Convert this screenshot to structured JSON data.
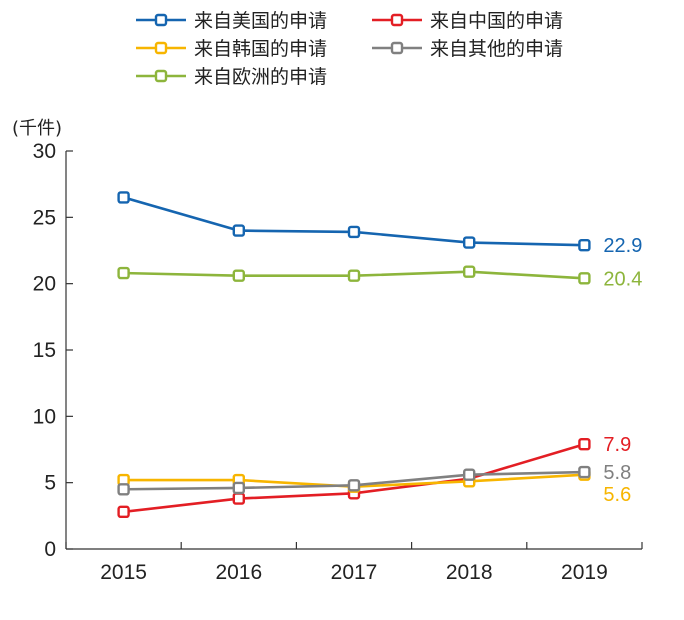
{
  "chart_data": {
    "type": "line",
    "title": "",
    "xlabel": "",
    "ylabel": "",
    "unit_label": "(千件)",
    "categories": [
      "2015",
      "2016",
      "2017",
      "2018",
      "2019"
    ],
    "ylim": [
      0,
      30
    ],
    "yticks": [
      0,
      5,
      10,
      15,
      20,
      25,
      30
    ],
    "grid": false,
    "legend_position": "top",
    "series": [
      {
        "name": "来自美国的申请",
        "color": "#1565b0",
        "values": [
          26.5,
          24.0,
          23.9,
          23.1,
          22.9
        ],
        "end_label": "22.9"
      },
      {
        "name": "来自中国的申请",
        "color": "#e31e24",
        "values": [
          2.8,
          3.8,
          4.2,
          5.3,
          7.9
        ],
        "end_label": "7.9"
      },
      {
        "name": "来自韩国的申请",
        "color": "#f7b500",
        "values": [
          5.2,
          5.2,
          4.7,
          5.1,
          5.6
        ],
        "end_label": "5.6"
      },
      {
        "name": "来自其他的申请",
        "color": "#808080",
        "values": [
          4.5,
          4.6,
          4.8,
          5.6,
          5.8
        ],
        "end_label": "5.8"
      },
      {
        "name": "来自欧洲的申请",
        "color": "#8db53c",
        "values": [
          20.8,
          20.6,
          20.6,
          20.9,
          20.4
        ],
        "end_label": "20.4"
      }
    ]
  }
}
